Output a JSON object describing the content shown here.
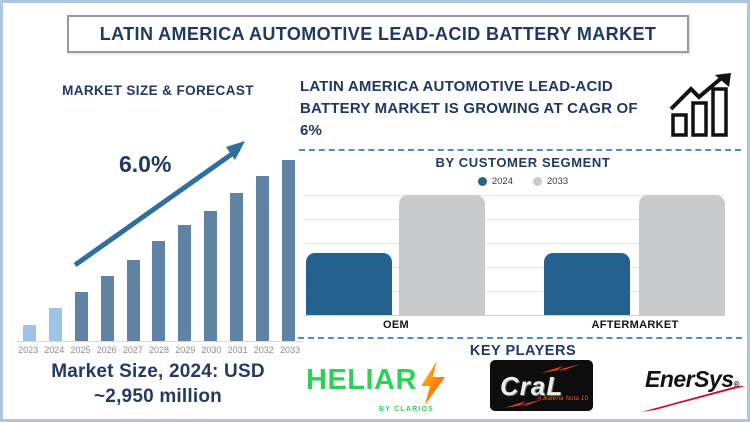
{
  "page": {
    "title": "LATIN AMERICA AUTOMOTIVE LEAD-ACID BATTERY MARKET"
  },
  "forecast_panel": {
    "title": "MARKET SIZE & FORECAST",
    "cagr_label": "6.0%",
    "market_size_line1": "Market Size, 2024: USD",
    "market_size_line2": "~2,950 million"
  },
  "headline": {
    "text": "LATIN AMERICA AUTOMOTIVE LEAD-ACID BATTERY MARKET IS GROWING AT CAGR OF 6%"
  },
  "segment_panel": {
    "title": "BY CUSTOMER SEGMENT",
    "legend": [
      {
        "label": "2024",
        "color": "#25618f"
      },
      {
        "label": "2033",
        "color": "#c9cacc"
      }
    ],
    "category_labels": [
      "OEM",
      "AFTERMARKET"
    ]
  },
  "key_players": {
    "title": "KEY PLAYERS",
    "heliar": {
      "name": "HELIAR",
      "subtext": "BY CLARIOS",
      "color": "#2ed157"
    },
    "cral": {
      "name": "CraL",
      "subtext": "A Bateria Nota 10"
    },
    "enersys": {
      "name": "EnerSys",
      "mark": "®"
    }
  },
  "colors": {
    "navy_text": "#1f3864",
    "forecast_bar_highlight": "#9dc3e6",
    "forecast_bar_main": "#6083a4",
    "trend_arrow": "#2e6f9e",
    "segment_2024_blue": "#25618f",
    "segment_2033_gray": "#c9cacc",
    "dashed_separator": "#4a8fc7",
    "frame_border": "#aec6e4"
  },
  "chart_data": [
    {
      "id": "market_size_forecast",
      "type": "bar",
      "title": "MARKET SIZE & FORECAST",
      "categories": [
        "2023",
        "2024",
        "2025",
        "2026",
        "2027",
        "2028",
        "2029",
        "2030",
        "2031",
        "2032",
        "2033"
      ],
      "values_relative": [
        9,
        18,
        27,
        36,
        45,
        55,
        64,
        72,
        82,
        91,
        100
      ],
      "highlight_years": [
        "2023",
        "2024"
      ],
      "highlight_color": "#9dc3e6",
      "bar_color": "#6083a4",
      "annotations": [
        "6.0% CAGR trend arrow rising left-to-right",
        "Market Size, 2024: USD ~2,950 million"
      ],
      "xlabel": "",
      "ylabel": "",
      "axis_values_shown": false,
      "grid": false
    },
    {
      "id": "by_customer_segment",
      "type": "bar",
      "title": "BY CUSTOMER SEGMENT",
      "categories": [
        "OEM",
        "AFTERMARKET"
      ],
      "series": [
        {
          "name": "2024",
          "color": "#25618f",
          "values": [
            52,
            52
          ]
        },
        {
          "name": "2033",
          "color": "#c9cacc",
          "values": [
            100,
            100
          ]
        }
      ],
      "units": "relative height, no numeric axis shown",
      "ylim": [
        0,
        100
      ],
      "grid": true,
      "legend_position": "top"
    }
  ]
}
